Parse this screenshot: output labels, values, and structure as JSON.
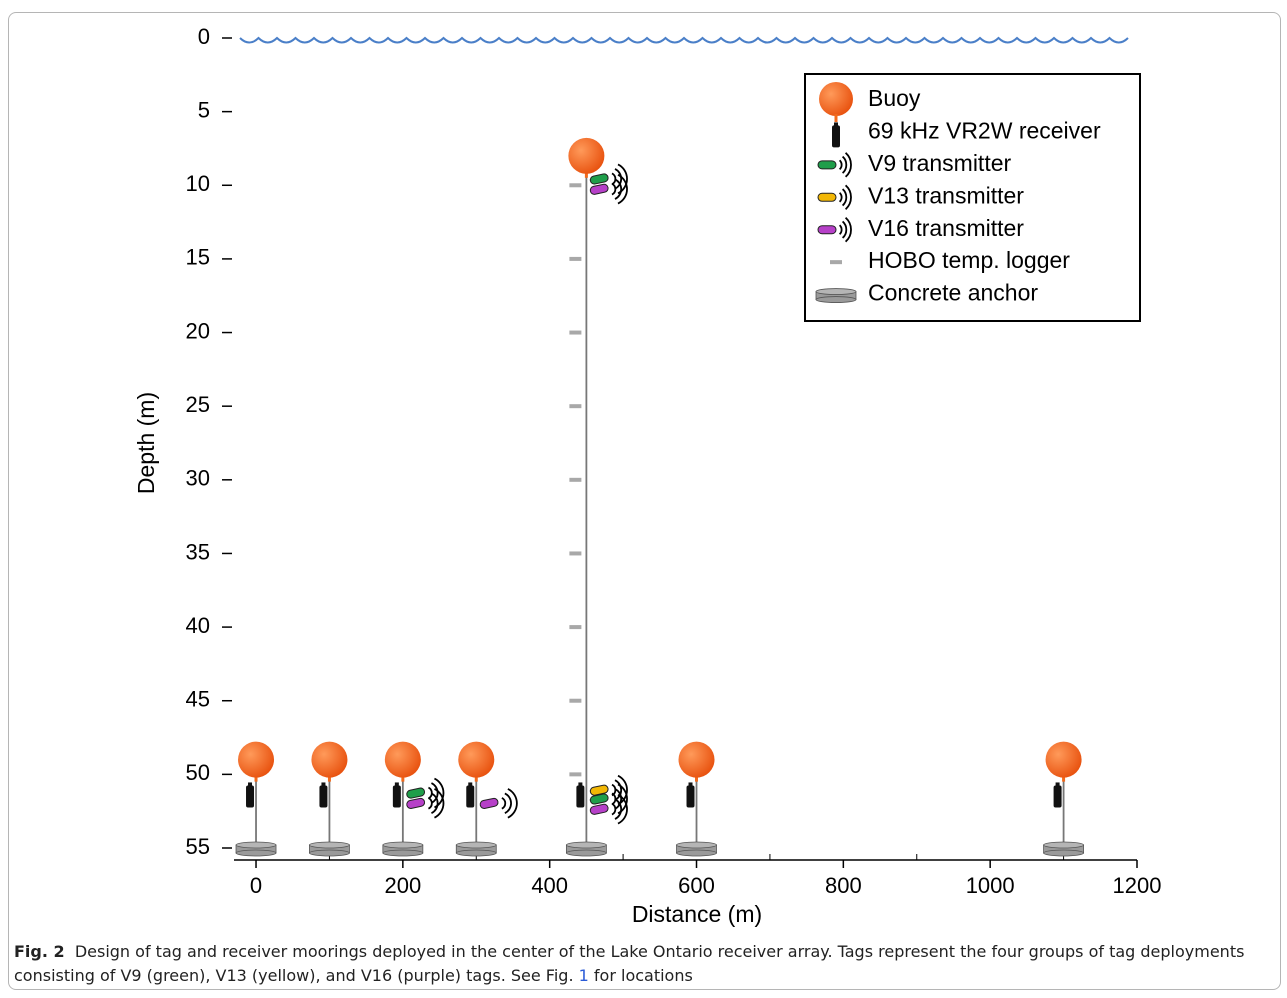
{
  "chart_data": {
    "type": "mooring",
    "x_label": "Distance (m)",
    "y_label": "Depth (m)",
    "xlim": [
      -30,
      1200
    ],
    "xticks": [
      0,
      200,
      400,
      600,
      800,
      1000,
      1200
    ],
    "xminorticks": [
      100,
      300,
      500,
      700,
      900,
      1100
    ],
    "ylim": [
      0,
      55
    ],
    "yticks": [
      0,
      5,
      10,
      15,
      20,
      25,
      30,
      35,
      40,
      45,
      50,
      55
    ],
    "surface": true,
    "surface_color": "#4a7fc8",
    "legend": "upper right",
    "series": [
      {
        "name": "Buoy",
        "marker": "buoy",
        "color": "#f26a1b",
        "x": [
          0,
          100,
          200,
          300,
          450,
          600,
          1100
        ],
        "values": [
          49,
          49,
          49,
          49,
          8,
          49,
          49
        ]
      },
      {
        "name": "69 kHz VR2W receiver",
        "marker": "receiver",
        "color": "#111111",
        "x": [
          0,
          100,
          200,
          300,
          450,
          600,
          1100
        ],
        "values": [
          51.5,
          51.5,
          51.5,
          51.5,
          51.5,
          51.5,
          51.5
        ]
      },
      {
        "name": "V9 transmitter",
        "marker": "tag",
        "color": "#1f9e4a",
        "x": [
          200,
          450,
          450
        ],
        "values": [
          51.4,
          9.7,
          51.8
        ]
      },
      {
        "name": "V13 transmitter",
        "marker": "tag",
        "color": "#f2b705",
        "x": [
          450
        ],
        "values": [
          51.2
        ]
      },
      {
        "name": "V16 transmitter",
        "marker": "tag",
        "color": "#b640c8",
        "x": [
          200,
          300,
          450,
          450
        ],
        "values": [
          52.1,
          52.1,
          10.4,
          52.5
        ]
      },
      {
        "name": "HOBO temp. logger",
        "marker": "logger",
        "color": "#a8a8a8",
        "x": [
          450,
          450,
          450,
          450,
          450,
          450,
          450,
          450,
          450
        ],
        "values": [
          10,
          15,
          20,
          25,
          30,
          35,
          40,
          45,
          50
        ]
      },
      {
        "name": "Concrete anchor",
        "marker": "anchor",
        "color": "#9a9a9a",
        "x": [
          0,
          100,
          200,
          300,
          450,
          600,
          1100
        ],
        "values": [
          55,
          55,
          55,
          55,
          55,
          55,
          55
        ]
      }
    ],
    "caption": {
      "label": "Fig. 2",
      "text": "Design of tag and receiver moorings deployed in the center of the Lake Ontario receiver array. Tags represent the four groups of tag deployments consisting of V9 (green), V13 (yellow), and V16 (purple) tags. See Fig.",
      "link": "1",
      "end": "for locations"
    }
  }
}
